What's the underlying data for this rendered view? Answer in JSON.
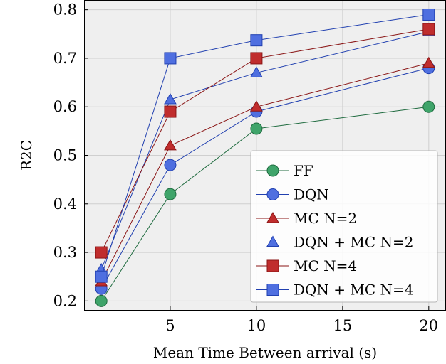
{
  "chart_data": {
    "type": "line",
    "title": "",
    "xlabel": "Mean Time Between arrival (s)",
    "ylabel": "R2C",
    "xlim": [
      0,
      21
    ],
    "ylim": [
      0.18,
      0.82
    ],
    "x_ticks": [
      "5",
      "10",
      "15",
      "20"
    ],
    "y_ticks": [
      "0.2",
      "0.3",
      "0.4",
      "0.5",
      "0.6",
      "0.7",
      "0.8"
    ],
    "grid": true,
    "legend_position": "bottom-right",
    "x": [
      1,
      5,
      10,
      20
    ],
    "series": [
      {
        "name": "FF",
        "marker": "circle",
        "fill": "#3fa46a",
        "stroke": "#1f6b3f",
        "values": [
          0.2,
          0.42,
          0.555,
          0.6
        ]
      },
      {
        "name": "DQN",
        "marker": "circle",
        "fill": "#4f6fe0",
        "stroke": "#2140b0",
        "values": [
          0.225,
          0.48,
          0.59,
          0.68
        ]
      },
      {
        "name": "MC N=2",
        "marker": "triangle",
        "fill": "#c02d2d",
        "stroke": "#8a1515",
        "values": [
          0.24,
          0.52,
          0.6,
          0.69
        ]
      },
      {
        "name": "DQN + MC N=2",
        "marker": "triangle",
        "fill": "#4f6fe0",
        "stroke": "#2140b0",
        "values": [
          0.265,
          0.615,
          0.67,
          0.755
        ]
      },
      {
        "name": "MC N=4",
        "marker": "square",
        "fill": "#c02d2d",
        "stroke": "#8a1515",
        "values": [
          0.3,
          0.59,
          0.7,
          0.76
        ]
      },
      {
        "name": "DQN + MC N=4",
        "marker": "square",
        "fill": "#4f6fe0",
        "stroke": "#2140b0",
        "values": [
          0.25,
          0.7,
          0.737,
          0.79
        ]
      }
    ]
  }
}
